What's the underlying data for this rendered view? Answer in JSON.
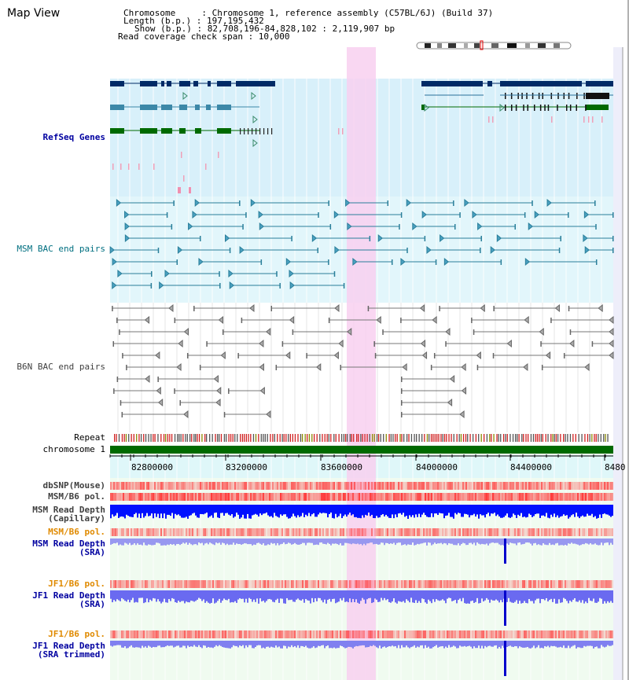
{
  "header": {
    "title": "Map View",
    "chromosome": "Chromosome     : Chromosome 1, reference assembly (C57BL/6J) (Build 37)",
    "length": "Length (b.p.) : 197,195,432",
    "show": "Show (b.p.) : 82,708,196-84,828,102 : 2,119,907 bp",
    "coverage": "Read coverage check span : 10,000"
  },
  "tracks": {
    "refseq": "RefSeq Genes",
    "msm_bac": "MSM BAC end pairs",
    "b6n_bac": "B6N BAC end pairs",
    "repeat": "Repeat",
    "chromosome": "chromosome 1",
    "dbsnp": "dbSNP(Mouse)",
    "msm_b6_pol_1": "MSM/B6 pol.",
    "msm_depth_cap": "MSM Read Depth\n(Capillary)",
    "msm_b6_pol_2": "MSM/B6 pol.",
    "msm_depth_sra": "MSM Read Depth\n(SRA)",
    "jf1_b6_pol_1": "JF1/B6 pol.",
    "jf1_depth_sra": "JF1 Read Depth\n(SRA)",
    "jf1_b6_pol_2": "JF1/B6 pol.",
    "jf1_depth_trim": "JF1 Read Depth\n(SRA trimmed)"
  },
  "axis": {
    "ticks": [
      "82800000",
      "83200000",
      "83600000",
      "84000000",
      "84400000",
      "8480"
    ]
  },
  "colors": {
    "gene_dark": "#002a66",
    "gene_mid": "#3c88a8",
    "gene_green": "#006a00",
    "bac_teal": "#2a7f9a",
    "highlight": "#f8d8f0",
    "depth_blue": "#0000ff",
    "pol_red": "#ff3030"
  }
}
